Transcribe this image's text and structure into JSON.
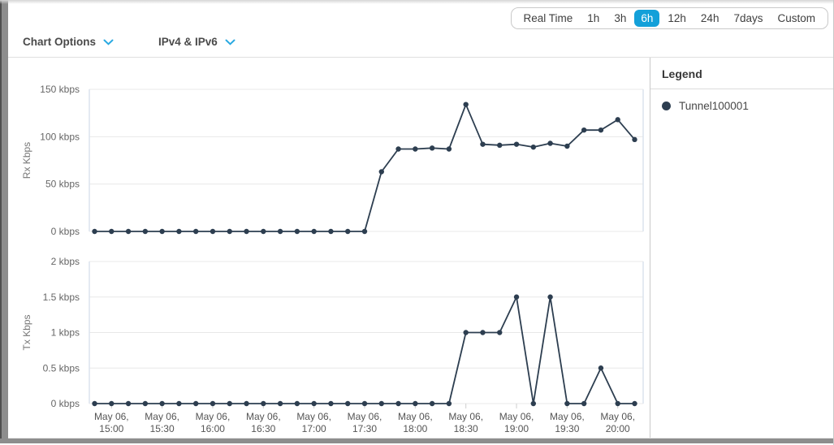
{
  "header": {
    "chart_options_label": "Chart Options",
    "ip_filter_label": "IPv4 & IPv6",
    "time_ranges": [
      "Real Time",
      "1h",
      "3h",
      "6h",
      "12h",
      "24h",
      "7days",
      "Custom"
    ],
    "selected_time_range": "6h",
    "accent_color": "#13a0d9",
    "chevron_color": "#29a9e1"
  },
  "legend": {
    "title": "Legend",
    "items": [
      {
        "label": "Tunnel100001",
        "color": "#2d3e50"
      }
    ]
  },
  "chart_data": [
    {
      "type": "line",
      "series_name": "Tunnel100001",
      "ylabel": "Rx Kbps",
      "ylim": [
        0,
        150
      ],
      "yticks": [
        0,
        50,
        100,
        150
      ],
      "ytick_labels": [
        "0 kbps",
        "50 kbps",
        "100 kbps",
        "150 kbps"
      ],
      "xtick_prefix": "May 06,",
      "xticks": [
        "15:00",
        "15:30",
        "16:00",
        "16:30",
        "17:00",
        "17:30",
        "18:00",
        "18:30",
        "19:00",
        "19:30",
        "20:00"
      ],
      "x": [
        "14:50",
        "15:00",
        "15:10",
        "15:20",
        "15:30",
        "15:40",
        "15:50",
        "16:00",
        "16:10",
        "16:20",
        "16:30",
        "16:40",
        "16:50",
        "17:00",
        "17:10",
        "17:20",
        "17:30",
        "17:40",
        "17:50",
        "18:00",
        "18:10",
        "18:20",
        "18:30",
        "18:40",
        "18:50",
        "19:00",
        "19:10",
        "19:20",
        "19:30",
        "19:40",
        "19:50",
        "20:00",
        "20:10"
      ],
      "values": [
        0,
        0,
        0,
        0,
        0,
        0,
        0,
        0,
        0,
        0,
        0,
        0,
        0,
        0,
        0,
        0,
        0,
        63,
        87,
        87,
        88,
        87,
        134,
        92,
        91,
        92,
        89,
        93,
        90,
        107,
        107,
        118,
        97
      ],
      "line_color": "#2d3e50",
      "grid": true,
      "legend_position": "right"
    },
    {
      "type": "line",
      "series_name": "Tunnel100001",
      "ylabel": "Tx Kbps",
      "ylim": [
        0,
        2
      ],
      "yticks": [
        0,
        0.5,
        1,
        1.5,
        2
      ],
      "ytick_labels": [
        "0 kbps",
        "0.5 kbps",
        "1 kbps",
        "1.5 kbps",
        "2 kbps"
      ],
      "xtick_prefix": "May 06,",
      "xticks": [
        "15:00",
        "15:30",
        "16:00",
        "16:30",
        "17:00",
        "17:30",
        "18:00",
        "18:30",
        "19:00",
        "19:30",
        "20:00"
      ],
      "x": [
        "14:50",
        "15:00",
        "15:10",
        "15:20",
        "15:30",
        "15:40",
        "15:50",
        "16:00",
        "16:10",
        "16:20",
        "16:30",
        "16:40",
        "16:50",
        "17:00",
        "17:10",
        "17:20",
        "17:30",
        "17:40",
        "17:50",
        "18:00",
        "18:10",
        "18:20",
        "18:30",
        "18:40",
        "18:50",
        "19:00",
        "19:10",
        "19:20",
        "19:30",
        "19:40",
        "19:50",
        "20:00",
        "20:10"
      ],
      "values": [
        0,
        0,
        0,
        0,
        0,
        0,
        0,
        0,
        0,
        0,
        0,
        0,
        0,
        0,
        0,
        0,
        0,
        0,
        0,
        0,
        0,
        0,
        1,
        1,
        1,
        1.5,
        0,
        1.5,
        0,
        0,
        0.5,
        0,
        0
      ],
      "line_color": "#2d3e50",
      "grid": true,
      "legend_position": "right"
    }
  ]
}
